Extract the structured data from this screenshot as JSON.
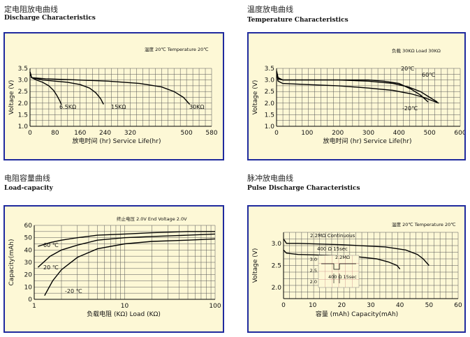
{
  "charts": [
    {
      "key": "discharge",
      "title_cn": "定电阻放电曲线",
      "title_en": "Discharge Characteristics",
      "note": "温度 20℃  Temperature 20℃",
      "ylabel": "Voltage (V)",
      "xlabel": "放电时间 (hr) Service Life(hr)",
      "x_ticks": [
        0,
        80,
        160,
        240,
        320,
        500,
        580
      ],
      "y_ticks": [
        1.0,
        1.5,
        2.0,
        2.5,
        3.0,
        3.5
      ],
      "xlim": [
        0,
        580
      ],
      "ylim": [
        1.0,
        3.5
      ],
      "curve_labels": [
        "6.5KΩ",
        "15KΩ",
        "30KΩ"
      ]
    },
    {
      "key": "temperature",
      "title_cn": "温度放电曲线",
      "title_en": "Temperature Characteristics",
      "note": "负载 30KΩ  Load 30KΩ",
      "ylabel": "Voltage (V)",
      "xlabel": "放电时间 (hr) Service Life(hr)",
      "x_ticks": [
        0,
        100,
        200,
        300,
        400,
        500,
        600
      ],
      "y_ticks": [
        1.0,
        1.5,
        2.0,
        2.5,
        3.0,
        3.5
      ],
      "xlim": [
        0,
        600
      ],
      "ylim": [
        1.0,
        3.5
      ],
      "curve_labels": [
        "20℃",
        "60℃",
        "-20℃"
      ]
    },
    {
      "key": "load",
      "title_cn": "电阻容量曲线",
      "title_en": "Load-capacity",
      "note": "终止电压 2.0V  End Voltage 2.0V",
      "ylabel": "Capacity(mAh)",
      "xlabel": "负载电阻 (KΩ) Load (KΩ)",
      "x_ticks": [
        "1",
        "10",
        "100"
      ],
      "y_ticks": [
        0,
        10,
        20,
        30,
        40,
        50,
        60
      ],
      "xlim": [
        1,
        100
      ],
      "ylim": [
        0,
        60
      ],
      "curve_labels": [
        "60 ℃",
        "20 ℃",
        "-20 ℃"
      ]
    },
    {
      "key": "pulse",
      "title_cn": "脉冲放电曲线",
      "title_en": "Pulse Discharge Characteristics",
      "note": "温度 20℃  Temperature 20℃",
      "ylabel": "Voltage (V)",
      "xlabel": "容量 (mAh) Capacity(mAh)",
      "x_ticks": [
        0,
        10,
        20,
        30,
        40,
        50,
        60
      ],
      "y_ticks": [
        2.0,
        2.5,
        3.0
      ],
      "xlim": [
        0,
        60
      ],
      "ylim": [
        1.75,
        3.25
      ],
      "curve_labels": [
        "2.2MΩ Continuous",
        "400 Ω 15sec"
      ],
      "inset": {
        "label_top": "2.2MΩ",
        "label_bottom": "400 Ω 15sec",
        "y_ticks": [
          "3.0",
          "2.5",
          "2.0"
        ]
      }
    }
  ],
  "chart_data": [
    {
      "type": "line",
      "title": "Discharge Characteristics",
      "xlabel": "Service Life(hr)",
      "ylabel": "Voltage (V)",
      "xlim": [
        0,
        580
      ],
      "ylim": [
        1.0,
        3.5
      ],
      "grid": true,
      "series": [
        {
          "name": "6.5KΩ",
          "x": [
            0,
            5,
            20,
            40,
            60,
            75,
            85,
            95,
            100
          ],
          "y": [
            3.35,
            3.1,
            3.0,
            2.9,
            2.75,
            2.55,
            2.35,
            2.1,
            1.95
          ]
        },
        {
          "name": "15KΩ",
          "x": [
            0,
            5,
            40,
            80,
            120,
            160,
            190,
            210,
            225,
            235
          ],
          "y": [
            3.35,
            3.1,
            3.0,
            2.95,
            2.9,
            2.8,
            2.65,
            2.45,
            2.2,
            1.95
          ]
        },
        {
          "name": "30KΩ",
          "x": [
            0,
            5,
            50,
            150,
            250,
            350,
            420,
            460,
            490,
            510
          ],
          "y": [
            3.35,
            3.1,
            3.05,
            3.0,
            2.95,
            2.85,
            2.7,
            2.5,
            2.25,
            1.95
          ]
        }
      ]
    },
    {
      "type": "line",
      "title": "Temperature Characteristics",
      "xlabel": "Service Life(hr)",
      "ylabel": "Voltage (V)",
      "xlim": [
        0,
        600
      ],
      "ylim": [
        1.0,
        3.5
      ],
      "grid": true,
      "series": [
        {
          "name": "60℃",
          "x": [
            0,
            5,
            20,
            100,
            200,
            300,
            350,
            400,
            440,
            470,
            495
          ],
          "y": [
            3.35,
            3.05,
            3.0,
            3.0,
            3.0,
            3.0,
            2.95,
            2.85,
            2.6,
            2.35,
            2.05
          ]
        },
        {
          "name": "20℃",
          "x": [
            0,
            5,
            20,
            100,
            200,
            300,
            380,
            430,
            470,
            500,
            525
          ],
          "y": [
            3.4,
            3.1,
            3.0,
            3.0,
            3.0,
            2.95,
            2.85,
            2.7,
            2.5,
            2.25,
            2.05
          ]
        },
        {
          "name": "-20℃",
          "x": [
            0,
            5,
            20,
            100,
            200,
            300,
            380,
            440,
            480,
            510,
            530
          ],
          "y": [
            3.3,
            2.95,
            2.85,
            2.8,
            2.75,
            2.65,
            2.55,
            2.4,
            2.25,
            2.1,
            2.0
          ]
        }
      ]
    },
    {
      "type": "line",
      "title": "Load-capacity",
      "xlabel": "Load (KΩ)",
      "ylabel": "Capacity(mAh)",
      "xlim": [
        1,
        100
      ],
      "ylim": [
        0,
        60
      ],
      "grid": true,
      "xscale": "log",
      "series": [
        {
          "name": "60 ℃",
          "x": [
            1.1,
            1.5,
            2,
            3,
            5,
            10,
            20,
            50,
            100
          ],
          "y": [
            43,
            46,
            48,
            50,
            52,
            53,
            54,
            55,
            55
          ]
        },
        {
          "name": "20 ℃",
          "x": [
            1.1,
            1.5,
            2,
            3,
            5,
            10,
            20,
            50,
            100
          ],
          "y": [
            26,
            35,
            40,
            44,
            48,
            50,
            51,
            52,
            53
          ]
        },
        {
          "name": "-20 ℃",
          "x": [
            1.3,
            1.6,
            2,
            3,
            5,
            10,
            20,
            50,
            100
          ],
          "y": [
            3,
            15,
            24,
            34,
            41,
            45,
            47,
            48,
            49
          ]
        }
      ]
    },
    {
      "type": "line",
      "title": "Pulse Discharge Characteristics",
      "xlabel": "Capacity(mAh)",
      "ylabel": "Voltage (V)",
      "xlim": [
        0,
        60
      ],
      "ylim": [
        1.75,
        3.25
      ],
      "grid": true,
      "series": [
        {
          "name": "2.2MΩ Continuous",
          "x": [
            0,
            1,
            5,
            20,
            35,
            42,
            46,
            48,
            50
          ],
          "y": [
            3.1,
            3.0,
            3.0,
            2.97,
            2.92,
            2.85,
            2.75,
            2.65,
            2.5
          ]
        },
        {
          "name": "400 Ω 15sec",
          "x": [
            0,
            1,
            5,
            15,
            25,
            32,
            36,
            39,
            40
          ],
          "y": [
            2.85,
            2.78,
            2.75,
            2.73,
            2.7,
            2.65,
            2.58,
            2.5,
            2.42
          ]
        }
      ]
    }
  ]
}
